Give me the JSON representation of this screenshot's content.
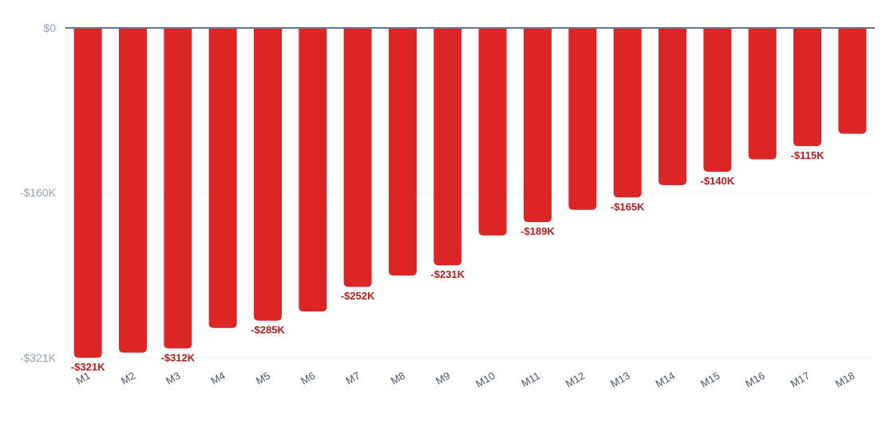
{
  "chart_data": {
    "type": "bar",
    "title": "",
    "xlabel": "",
    "ylabel": "",
    "categories": [
      "M1",
      "M2",
      "M3",
      "M4",
      "M5",
      "M6",
      "M7",
      "M8",
      "M9",
      "M10",
      "M11",
      "M12",
      "M13",
      "M14",
      "M15",
      "M16",
      "M17",
      "M18"
    ],
    "values": [
      -321,
      -316,
      -312,
      -292,
      -285,
      -276,
      -252,
      -241,
      -231,
      -202,
      -189,
      -177,
      -165,
      -153,
      -140,
      -128,
      -115,
      -103
    ],
    "value_unit": "$K",
    "data_labels": {
      "0": "-$321K",
      "2": "-$312K",
      "4": "-$285K",
      "6": "-$252K",
      "8": "-$231K",
      "10": "-$189K",
      "12": "-$165K",
      "14": "-$140K",
      "16": "-$115K"
    },
    "y_ticks": [
      {
        "value": 0,
        "label": "$0"
      },
      {
        "value": -160,
        "label": "-$160K"
      },
      {
        "value": -321,
        "label": "-$321K"
      }
    ],
    "ylim": [
      -321,
      0
    ],
    "grid": true,
    "legend": "none",
    "colors": {
      "bar": "#dc2626",
      "zero_line": "#64748b",
      "grid": "#eef2f7",
      "data_label": "#b91c1c",
      "tick_label": "#94a3b8",
      "category_label": "#475569"
    }
  }
}
